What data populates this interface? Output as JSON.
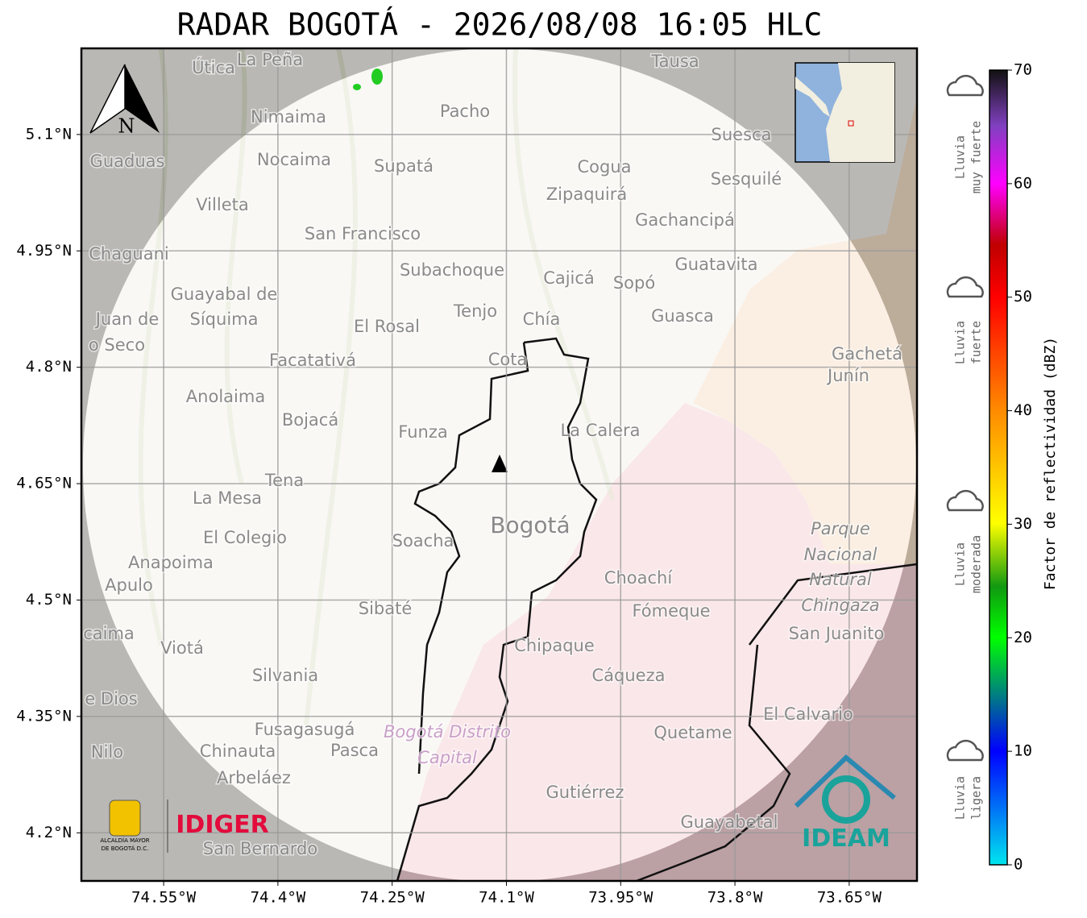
{
  "title": "RADAR BOGOTÁ - 2026/08/08 16:05 HLC",
  "map": {
    "xlim": [
      -74.658,
      -73.561
    ],
    "ylim": [
      4.138,
      5.211
    ],
    "xticks": [
      {
        "value": -74.55,
        "label": "74.55°W"
      },
      {
        "value": -74.4,
        "label": "74.4°W"
      },
      {
        "value": -74.25,
        "label": "74.25°W"
      },
      {
        "value": -74.1,
        "label": "74.1°W"
      },
      {
        "value": -73.95,
        "label": "73.95°W"
      },
      {
        "value": -73.8,
        "label": "73.8°W"
      },
      {
        "value": -73.65,
        "label": "73.65°W"
      }
    ],
    "yticks": [
      {
        "value": 5.1,
        "label": "5.1°N"
      },
      {
        "value": 4.95,
        "label": "4.95°N"
      },
      {
        "value": 4.8,
        "label": "4.8°N"
      },
      {
        "value": 4.65,
        "label": "4.65°N"
      },
      {
        "value": 4.5,
        "label": "4.5°N"
      },
      {
        "value": 4.35,
        "label": "4.35°N"
      },
      {
        "value": 4.2,
        "label": "4.2°N"
      }
    ],
    "grid": true,
    "north": "N",
    "places": [
      "Útica",
      "La Peña",
      "Tausa",
      "Pacho",
      "Nimaima",
      "Guaduas",
      "Nocaima",
      "Supatá",
      "Cogua",
      "Suesca",
      "Sesquilé",
      "Zipaquirá",
      "Villeta",
      "Gachancipá",
      "San Francisco",
      "Chaguani",
      "Guatavita",
      "Subachoque",
      "Cajicá",
      "Sopó",
      "Guayabal de",
      "Síquima",
      "Juan de",
      "o Seco",
      "Tenjo",
      "Chía",
      "Guasca",
      "El Rosal",
      "Facatativá",
      "Cota",
      "Gachetá",
      "Junín",
      "Anolaima",
      "Bojacá",
      "Funza",
      "La Calera",
      "Tena",
      "La Mesa",
      "Bogotá",
      "El Colegio",
      "Soacha",
      "Parque",
      "Nacional",
      "Natural",
      "Chingaza",
      "Anapoima",
      "Apulo",
      "Choachí",
      "Fómeque",
      "Sibaté",
      "San Juanito",
      "caima",
      "Viotá",
      "Chipaque",
      "Silvania",
      "Cáqueza",
      "e Dios",
      "El Calvario",
      "Fusagasugá",
      "Bogotá Distrito",
      "Capital",
      "Quetame",
      "Nilo",
      "Chinauta",
      "Pasca",
      "Arbeláez",
      "Gutiérrez",
      "Guayabetal",
      "San Bernardo"
    ]
  },
  "colorbar": {
    "label": "Factor de reflectividad (dBZ)",
    "ylim": [
      0,
      70
    ],
    "yticks": [
      0,
      10,
      20,
      30,
      40,
      50,
      60,
      70
    ],
    "legend": [
      [
        "Lluvia",
        "muy fuerte"
      ],
      [
        "Lluvia",
        "fuerte"
      ],
      [
        "Lluvia",
        "moderada"
      ],
      [
        "Lluvia",
        "ligera"
      ]
    ]
  },
  "logos": {
    "alcaldia": [
      "ALCALDÍA MAYOR",
      "DE BOGOTÁ D.C."
    ],
    "idiger": "IDIGER",
    "ideam": "IDEAM"
  }
}
